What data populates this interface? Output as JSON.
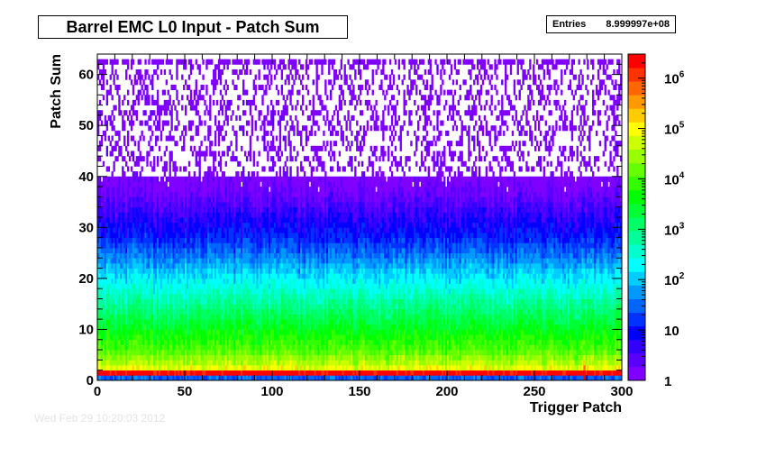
{
  "header": {
    "title": "Barrel EMC L0 Input - Patch Sum",
    "stats_label": "Entries",
    "stats_value": "8.999997e+08"
  },
  "footer": {
    "stamp": "Wed Feb 29 10:20:03 2012"
  },
  "chart_data": {
    "type": "heatmap",
    "title": "Barrel EMC L0 Input - Patch Sum",
    "xlabel": "Trigger Patch",
    "ylabel": "Patch Sum",
    "xlim": [
      0,
      300
    ],
    "ylim": [
      0,
      64
    ],
    "xticks": [
      0,
      50,
      100,
      150,
      200,
      250,
      300
    ],
    "yticks": [
      0,
      10,
      20,
      30,
      40,
      50,
      60
    ],
    "z_scale": "log",
    "zlim": [
      1,
      3000000
    ],
    "z_ticks": [
      {
        "value": 1,
        "label": "1"
      },
      {
        "value": 10,
        "label": "10"
      },
      {
        "value": 100,
        "label": "10",
        "exp": "2"
      },
      {
        "value": 1000,
        "label": "10",
        "exp": "3"
      },
      {
        "value": 10000,
        "label": "10",
        "exp": "4"
      },
      {
        "value": 100000,
        "label": "10",
        "exp": "5"
      },
      {
        "value": 1000000,
        "label": "10",
        "exp": "6"
      }
    ],
    "palette": [
      "#7f00ff",
      "#5a00ff",
      "#3300ff",
      "#0000ff",
      "#0033ff",
      "#0066ff",
      "#0099ff",
      "#00ccff",
      "#00ffff",
      "#00ffcc",
      "#00ff99",
      "#00ff66",
      "#00ff33",
      "#00ff00",
      "#33ff00",
      "#66ff00",
      "#99ff00",
      "#ccff00",
      "#ffff00",
      "#ffcc00",
      "#ff9900",
      "#ff6600",
      "#ff3300",
      "#ff0000"
    ],
    "rows": [
      {
        "y": 0,
        "z": 30
      },
      {
        "y": 1,
        "z": 2500000
      },
      {
        "y": 2,
        "z": 80000
      },
      {
        "y": 3,
        "z": 40000
      },
      {
        "y": 4,
        "z": 25000
      },
      {
        "y": 5,
        "z": 15000
      },
      {
        "y": 6,
        "z": 10000
      },
      {
        "y": 8,
        "z": 6000
      },
      {
        "y": 10,
        "z": 3000
      },
      {
        "y": 13,
        "z": 1200
      },
      {
        "y": 16,
        "z": 500
      },
      {
        "y": 20,
        "z": 150
      },
      {
        "y": 24,
        "z": 40
      },
      {
        "y": 28,
        "z": 12
      },
      {
        "y": 32,
        "z": 5
      },
      {
        "y": 36,
        "z": 2
      },
      {
        "y": 40,
        "z": 1.2
      },
      {
        "y": 63,
        "z": 1
      }
    ],
    "hot_columns": [
      {
        "x": 278,
        "y_range": [
          0,
          7
        ],
        "z": 5000000
      }
    ],
    "sparse_rows": {
      "y": 62,
      "z": 1
    }
  }
}
